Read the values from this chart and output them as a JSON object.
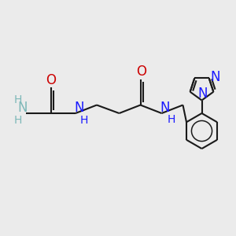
{
  "background_color": "#ebebeb",
  "bond_color": "#000000",
  "bond_width": 1.5,
  "figsize": [
    3.0,
    3.0
  ],
  "dpi": 100,
  "xlim": [
    0,
    10
  ],
  "ylim": [
    0,
    10
  ],
  "colors": {
    "N_teal": "#7db8b8",
    "N_blue": "#1a1aff",
    "O_red": "#cc0000",
    "bond": "#1a1a1a"
  }
}
